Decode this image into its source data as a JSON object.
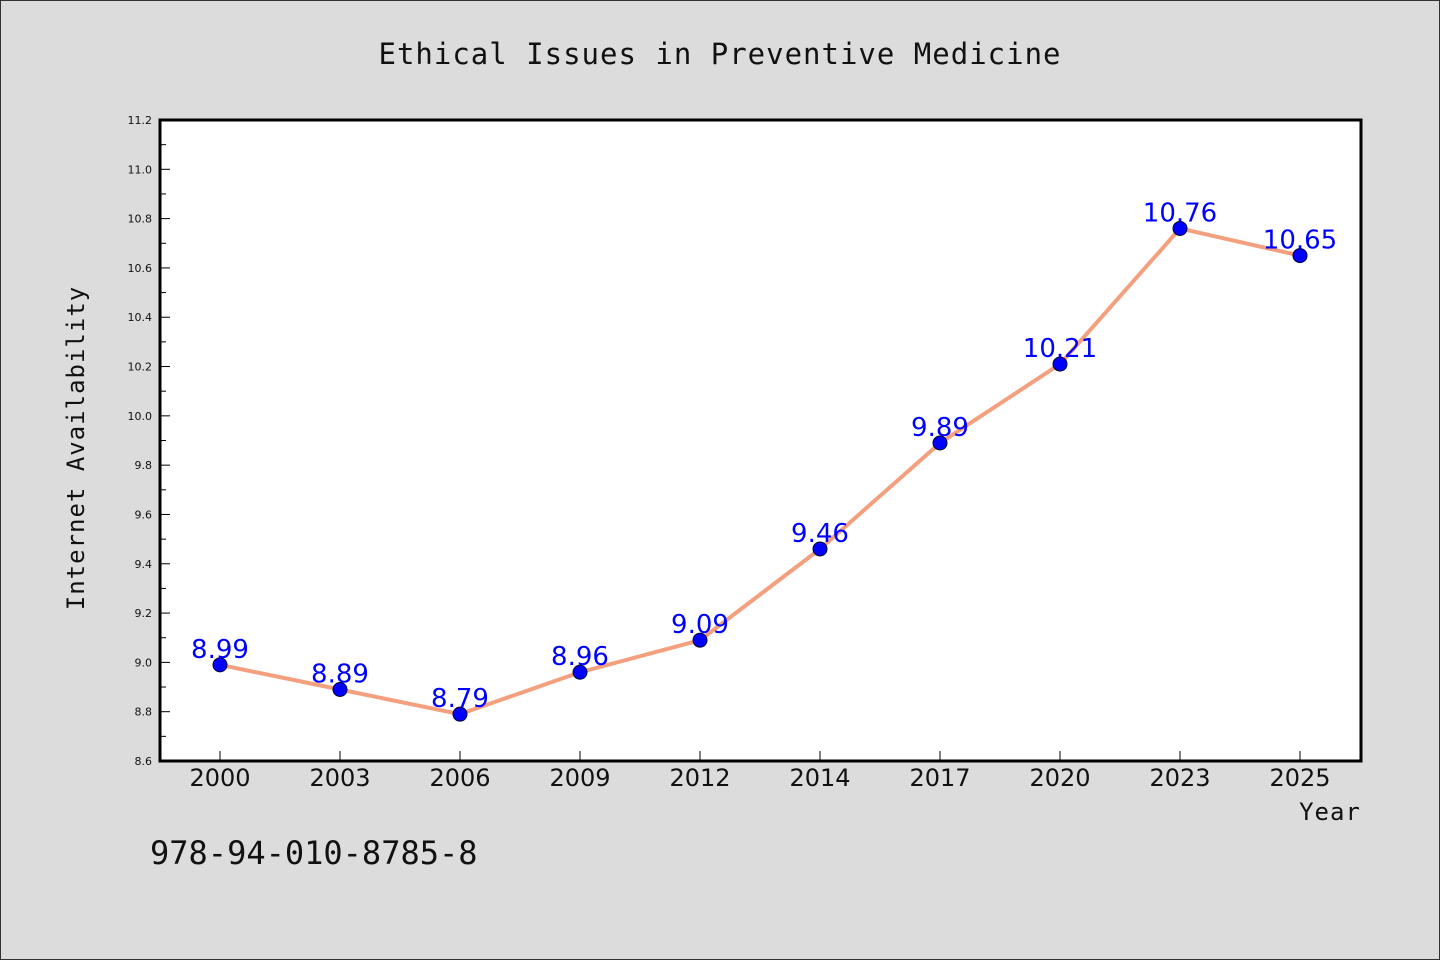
{
  "chart_data": {
    "type": "line",
    "title": "Ethical Issues in Preventive Medicine",
    "xlabel": "Year",
    "ylabel": "Internet Availability",
    "categories": [
      "2000",
      "2003",
      "2006",
      "2009",
      "2012",
      "2014",
      "2017",
      "2020",
      "2023",
      "2025"
    ],
    "series": [
      {
        "values": [
          8.99,
          8.89,
          8.79,
          8.96,
          9.09,
          9.46,
          9.89,
          10.21,
          10.76,
          10.65
        ],
        "labels": [
          "8.99",
          "8.89",
          "8.79",
          "8.96",
          "9.09",
          "9.46",
          "9.89",
          "10.21",
          "10.76",
          "10.65"
        ]
      }
    ],
    "ylim": [
      8.6,
      11.2
    ],
    "yticks": [
      "8.6",
      "8.8",
      "9.0",
      "9.2",
      "9.4",
      "9.6",
      "9.8",
      "10.0",
      "10.2",
      "10.4",
      "10.6",
      "10.8",
      "11.0",
      "11.2"
    ],
    "grid": false,
    "line_color": "#f4a07f",
    "marker_color": "#0000ff",
    "label_color": "#0000ff",
    "background_color": "#dcdcdc",
    "plot_background": "#ffffff"
  },
  "footer": {
    "code": "978-94-010-8785-8"
  }
}
